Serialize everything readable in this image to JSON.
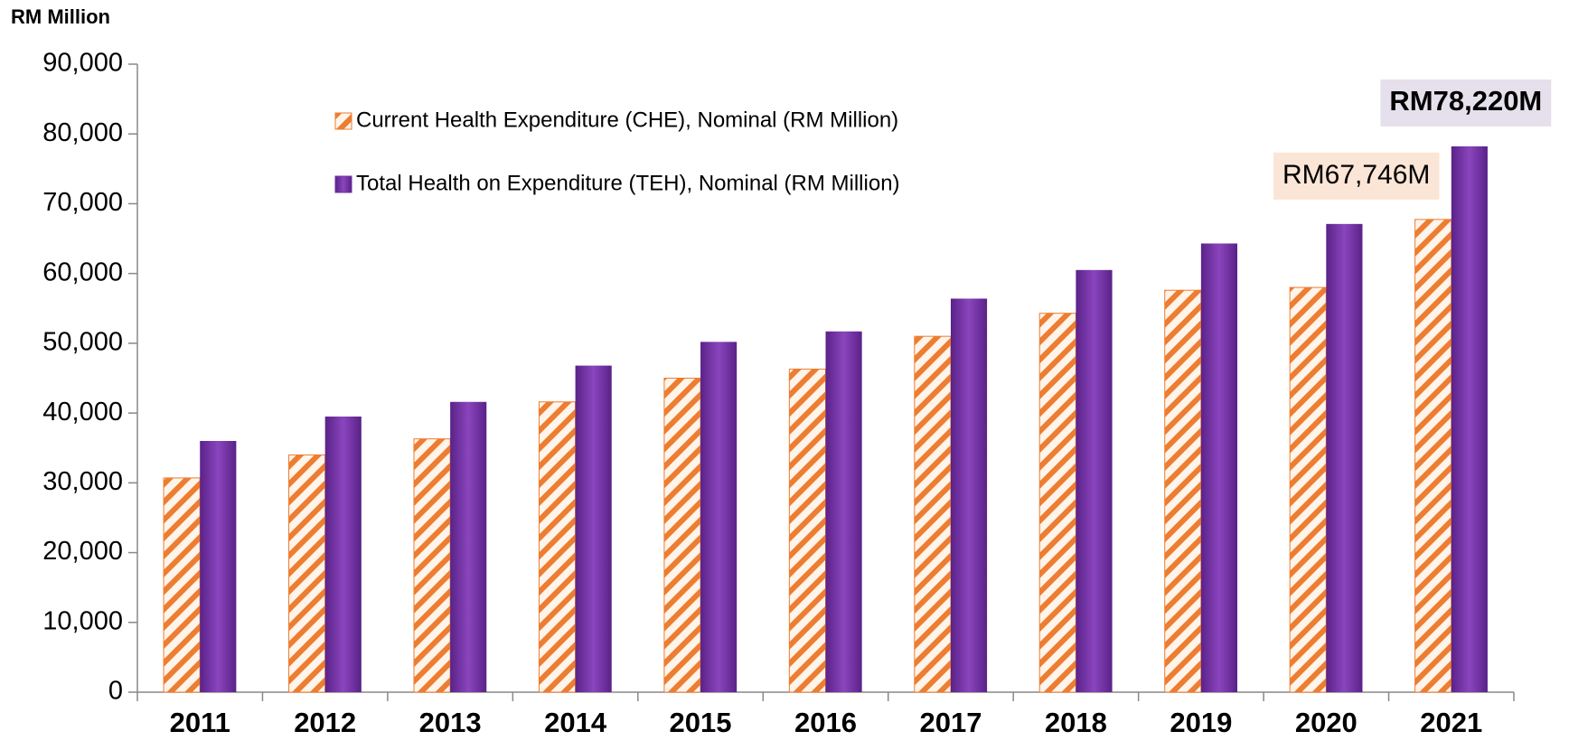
{
  "chart_data": {
    "type": "bar",
    "y_axis_label": "RM Million",
    "categories": [
      "2011",
      "2012",
      "2013",
      "2014",
      "2015",
      "2016",
      "2017",
      "2018",
      "2019",
      "2020",
      "2021"
    ],
    "series": [
      {
        "name": "Current Health Expenditure (CHE), Nominal (RM Million)",
        "color": "#ed7d31",
        "label_color": "#fbe5d6",
        "values": [
          30700,
          34000,
          36300,
          41600,
          45000,
          46300,
          51000,
          54300,
          57600,
          58000,
          67746
        ],
        "value_labels": [
          null,
          null,
          null,
          null,
          null,
          null,
          null,
          null,
          null,
          null,
          "RM67,746M"
        ]
      },
      {
        "name": "Total Health on Expenditure (TEH), Nominal (RM Million)",
        "color": "#7030a0",
        "label_color": "#e6e0ec",
        "values": [
          36000,
          39500,
          41600,
          46800,
          50200,
          51700,
          56400,
          60500,
          64300,
          67100,
          78220
        ],
        "value_labels": [
          null,
          null,
          null,
          null,
          null,
          null,
          null,
          null,
          null,
          null,
          "RM78,220M"
        ]
      }
    ],
    "ylim": [
      0,
      90000
    ],
    "yticks": [
      {
        "value": 0,
        "label": "0"
      },
      {
        "value": 10000,
        "label": "10,000"
      },
      {
        "value": 20000,
        "label": "20,000"
      },
      {
        "value": 30000,
        "label": "30,000"
      },
      {
        "value": 40000,
        "label": "40,000"
      },
      {
        "value": 50000,
        "label": "50,000"
      },
      {
        "value": 60000,
        "label": "60,000"
      },
      {
        "value": 70000,
        "label": "70,000"
      },
      {
        "value": 80000,
        "label": "80,000"
      },
      {
        "value": 90000,
        "label": "90,000"
      }
    ],
    "grid": false,
    "legend": "top"
  }
}
